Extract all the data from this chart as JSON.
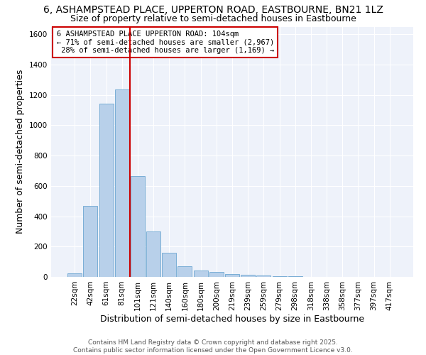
{
  "title1": "6, ASHAMPSTEAD PLACE, UPPERTON ROAD, EASTBOURNE, BN21 1LZ",
  "title2": "Size of property relative to semi-detached houses in Eastbourne",
  "xlabel": "Distribution of semi-detached houses by size in Eastbourne",
  "ylabel": "Number of semi-detached properties",
  "categories": [
    "22sqm",
    "42sqm",
    "61sqm",
    "81sqm",
    "101sqm",
    "121sqm",
    "140sqm",
    "160sqm",
    "180sqm",
    "200sqm",
    "219sqm",
    "239sqm",
    "259sqm",
    "279sqm",
    "298sqm",
    "318sqm",
    "338sqm",
    "358sqm",
    "377sqm",
    "397sqm",
    "417sqm"
  ],
  "values": [
    25,
    470,
    1140,
    1235,
    665,
    298,
    158,
    70,
    42,
    32,
    20,
    14,
    10,
    5,
    4,
    2,
    1,
    1,
    0,
    0,
    0
  ],
  "bar_color": "#b8d0ea",
  "bar_edge_color": "#7aaed6",
  "reference_line_index": 4,
  "reference_line_color": "#cc0000",
  "annotation_text": "6 ASHAMPSTEAD PLACE UPPERTON ROAD: 104sqm\n← 71% of semi-detached houses are smaller (2,967)\n 28% of semi-detached houses are larger (1,169) →",
  "annotation_box_color": "#cc0000",
  "background_color": "#eef2fa",
  "ylim": [
    0,
    1650
  ],
  "yticks": [
    0,
    200,
    400,
    600,
    800,
    1000,
    1200,
    1400,
    1600
  ],
  "footer1": "Contains HM Land Registry data © Crown copyright and database right 2025.",
  "footer2": "Contains public sector information licensed under the Open Government Licence v3.0.",
  "title_fontsize": 10,
  "subtitle_fontsize": 9,
  "tick_fontsize": 7.5,
  "label_fontsize": 9,
  "annotation_fontsize": 7.5,
  "footer_fontsize": 6.5
}
